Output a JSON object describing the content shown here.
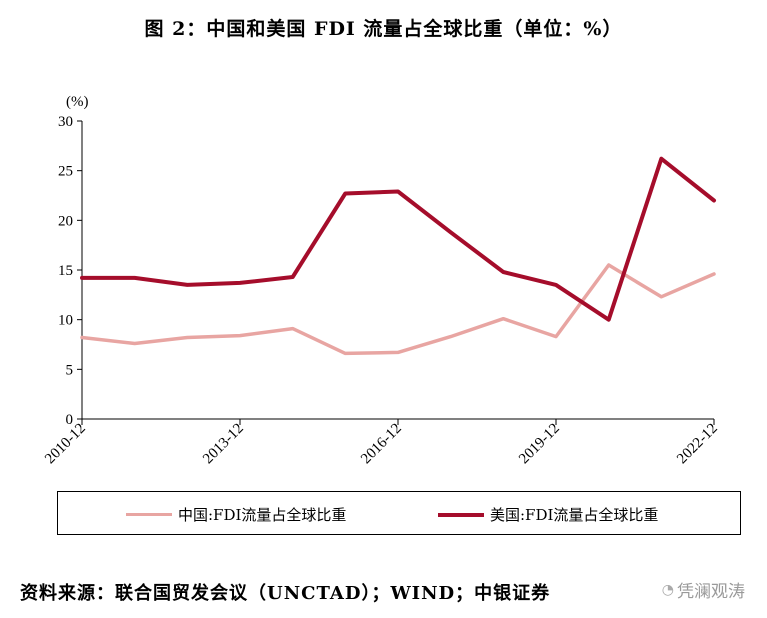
{
  "title": "图 2：中国和美国 FDI 流量占全球比重（单位：%）",
  "source": "资料来源：联合国贸发会议（UNCTAD）；WIND；中银证券",
  "watermark": "凭澜观涛",
  "watermark_icon": "wechat-icon",
  "colors": {
    "china": "#e8a5a2",
    "usa": "#a50d2b",
    "axis": "#000000"
  },
  "chart_data": {
    "type": "line",
    "unit_label": "(%)",
    "ylim": [
      0,
      30
    ],
    "yticks": [
      0,
      5,
      10,
      15,
      20,
      25,
      30
    ],
    "xticks": [
      "2010-12",
      "2012-06",
      "2013-12",
      "2015-06",
      "2016-12",
      "2018-06",
      "2019-12",
      "2021-06",
      "2022-12"
    ],
    "x": [
      "2010-12",
      "2011-12",
      "2012-12",
      "2013-12",
      "2014-12",
      "2015-12",
      "2016-12",
      "2017-12",
      "2018-12",
      "2019-12",
      "2020-12",
      "2021-12",
      "2022-12"
    ],
    "series": [
      {
        "name": "中国:FDI流量占全球比重",
        "values": [
          8.2,
          7.6,
          8.2,
          8.4,
          9.1,
          6.6,
          6.7,
          8.3,
          10.1,
          8.3,
          15.5,
          12.3,
          14.6
        ]
      },
      {
        "name": "美国:FDI流量占全球比重",
        "values": [
          14.2,
          14.2,
          13.5,
          13.7,
          14.3,
          22.7,
          22.9,
          18.8,
          14.8,
          13.5,
          10.0,
          26.2,
          22.0
        ]
      }
    ],
    "grid": false,
    "legend_position": "bottom"
  }
}
